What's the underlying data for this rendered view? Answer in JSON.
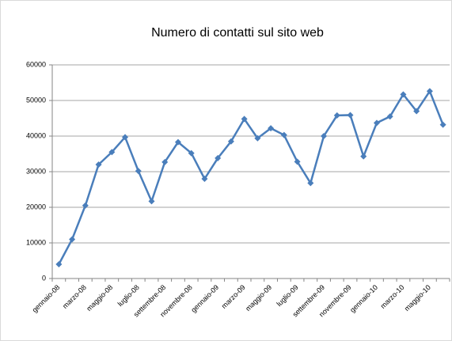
{
  "chart_data": {
    "type": "line",
    "title": "Numero di contatti sul sito web",
    "categories": [
      "gennaio-08",
      null,
      "marzo-08",
      null,
      "maggio-08",
      null,
      "luglio-08",
      null,
      "settembre-08",
      null,
      "novembre-08",
      null,
      "gennaio-09",
      null,
      "marzo-09",
      null,
      "maggio-09",
      null,
      "luglio-09",
      null,
      "settembre-09",
      null,
      "novembre-09",
      null,
      "gennaio-10",
      null,
      "marzo-10",
      null,
      "maggio-10",
      null
    ],
    "values": [
      4000,
      11000,
      20500,
      32000,
      35500,
      39700,
      30200,
      21700,
      32700,
      38300,
      35200,
      28000,
      33800,
      38500,
      44800,
      39400,
      42200,
      40300,
      32800,
      26800,
      40000,
      45800,
      45900,
      34300,
      43700,
      45500,
      51700,
      47000,
      52600,
      43200
    ],
    "color": "#4a7ebb",
    "ylim": [
      0,
      60000
    ],
    "yticks": [
      0,
      10000,
      20000,
      30000,
      40000,
      50000,
      60000
    ],
    "grid": true
  }
}
